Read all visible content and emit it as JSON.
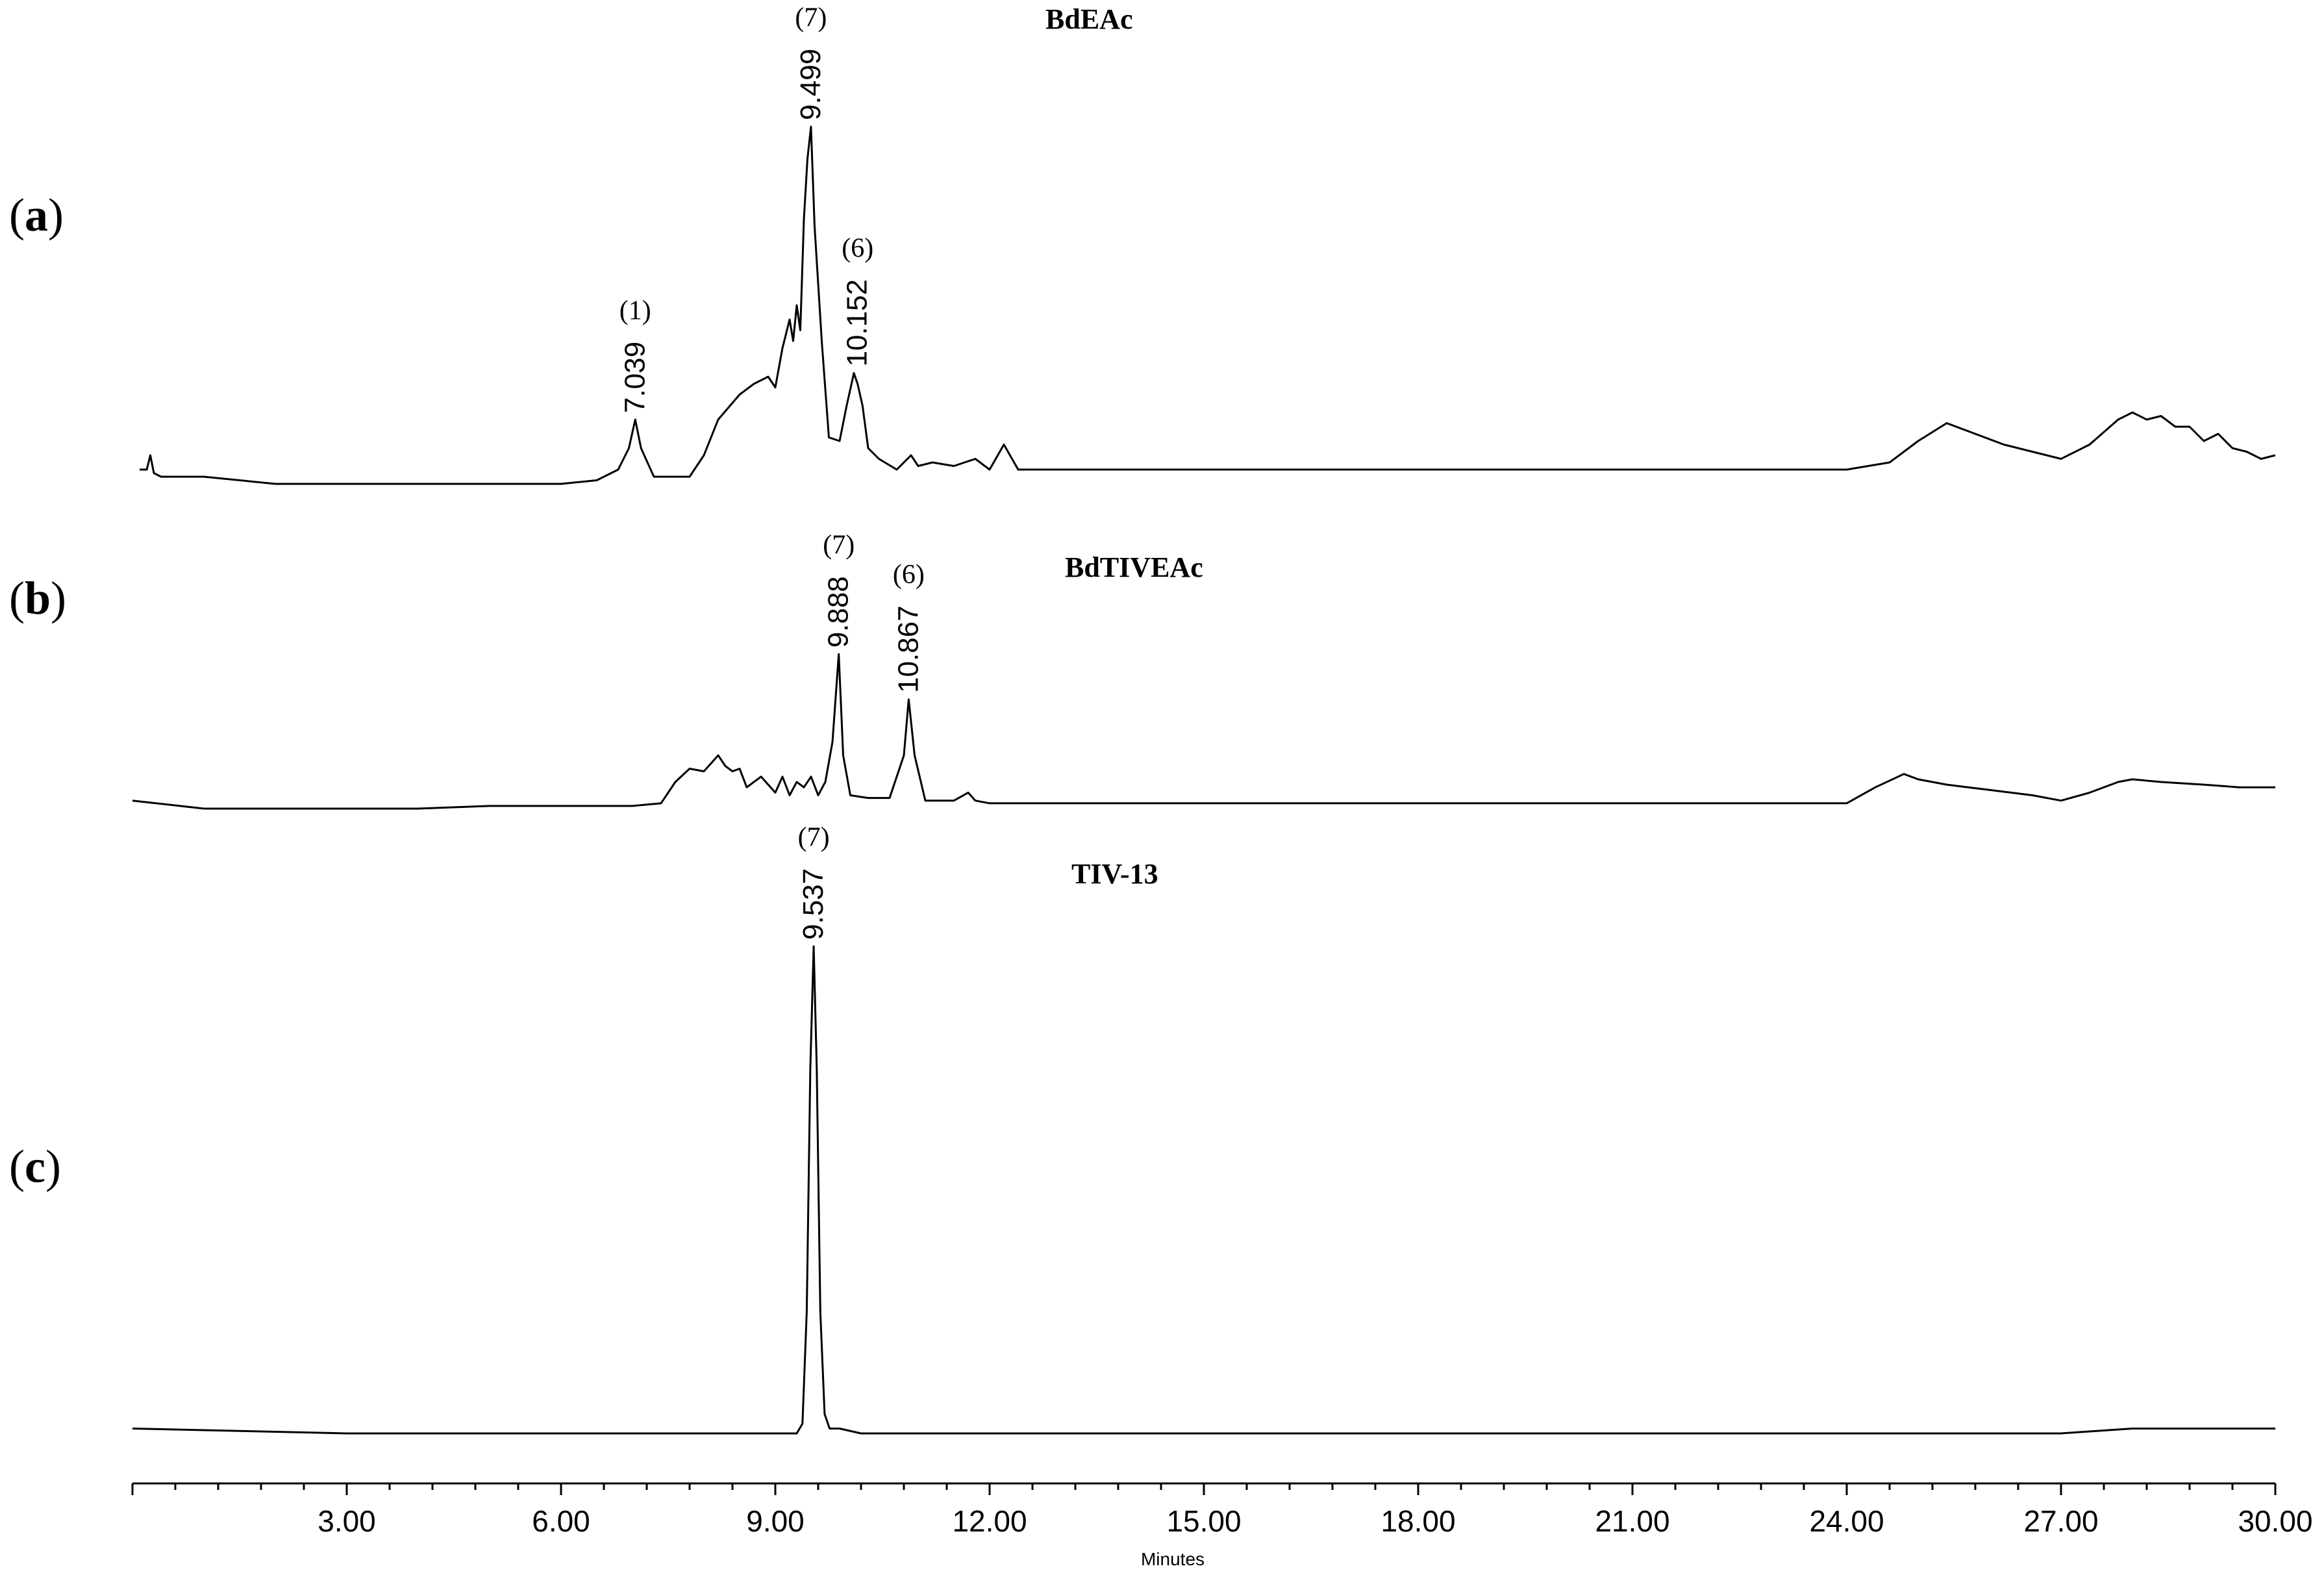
{
  "chart_data": {
    "type": "line",
    "x_unit_label": "Minutes",
    "xlim": [
      0.0,
      30.0
    ],
    "x_ticks": [
      "3.00",
      "6.00",
      "9.00",
      "12.00",
      "15.00",
      "18.00",
      "21.00",
      "24.00",
      "27.00",
      "30.00"
    ],
    "panels": [
      {
        "label": "a",
        "title": "BdEAc",
        "peaks": [
          {
            "id": "1",
            "rt_label": "7.039",
            "x": 7.039,
            "height": 0.18
          },
          {
            "id": "7",
            "rt_label": "9.499",
            "x": 9.499,
            "height": 1.0
          },
          {
            "id": "6",
            "rt_label": "10.152",
            "x": 10.152,
            "height": 0.31
          }
        ],
        "series": [
          {
            "x": [
              0.1,
              0.2,
              0.25,
              0.3,
              0.4,
              1.0,
              2.0,
              3.0,
              4.0,
              5.0,
              6.0,
              6.5,
              6.8,
              6.95,
              7.039,
              7.12,
              7.3,
              7.8,
              8.0,
              8.2,
              8.5,
              8.7,
              8.9,
              9.0,
              9.1,
              9.2,
              9.25,
              9.3,
              9.35,
              9.4,
              9.45,
              9.499,
              9.55,
              9.65,
              9.75,
              9.9,
              10.0,
              10.1,
              10.152,
              10.22,
              10.3,
              10.45,
              10.7,
              10.9,
              11.0,
              11.2,
              11.5,
              11.8,
              12.0,
              12.2,
              12.4,
              13.0,
              15.0,
              18.0,
              21.0,
              24.0,
              24.6,
              25.0,
              25.4,
              25.8,
              26.2,
              26.6,
              27.0,
              27.4,
              27.8,
              28.0,
              28.2,
              28.4,
              28.6,
              28.8,
              29.0,
              29.2,
              29.4,
              29.6,
              29.8,
              30.0
            ],
            "y": [
              0.04,
              0.04,
              0.08,
              0.03,
              0.02,
              0.02,
              0.0,
              0.0,
              0.0,
              0.0,
              0.0,
              0.01,
              0.04,
              0.1,
              0.18,
              0.1,
              0.02,
              0.02,
              0.08,
              0.18,
              0.25,
              0.28,
              0.3,
              0.27,
              0.38,
              0.46,
              0.4,
              0.5,
              0.43,
              0.74,
              0.91,
              1.0,
              0.72,
              0.4,
              0.13,
              0.12,
              0.22,
              0.31,
              0.28,
              0.22,
              0.1,
              0.07,
              0.04,
              0.08,
              0.05,
              0.06,
              0.05,
              0.07,
              0.04,
              0.11,
              0.04,
              0.04,
              0.04,
              0.04,
              0.04,
              0.04,
              0.06,
              0.12,
              0.17,
              0.14,
              0.11,
              0.09,
              0.07,
              0.11,
              0.18,
              0.2,
              0.18,
              0.19,
              0.16,
              0.16,
              0.12,
              0.14,
              0.1,
              0.09,
              0.07,
              0.08
            ]
          }
        ]
      },
      {
        "label": "b",
        "title": "BdTIVEAc",
        "peaks": [
          {
            "id": "7",
            "rt_label": "9.888",
            "x": 9.888,
            "height": 0.58
          },
          {
            "id": "6",
            "rt_label": "10.867",
            "x": 10.867,
            "height": 0.41
          }
        ],
        "series": [
          {
            "x": [
              0.0,
              1.0,
              2.0,
              3.0,
              4.0,
              5.0,
              6.0,
              7.0,
              7.4,
              7.6,
              7.8,
              8.0,
              8.2,
              8.3,
              8.4,
              8.5,
              8.6,
              8.8,
              9.0,
              9.1,
              9.2,
              9.3,
              9.4,
              9.5,
              9.6,
              9.7,
              9.8,
              9.888,
              9.95,
              10.05,
              10.3,
              10.6,
              10.8,
              10.867,
              10.95,
              11.1,
              11.5,
              11.7,
              11.8,
              12.0,
              15.0,
              18.0,
              21.0,
              24.0,
              24.4,
              24.8,
              25.0,
              25.4,
              26.0,
              26.6,
              27.0,
              27.4,
              27.8,
              28.0,
              28.4,
              29.0,
              29.5,
              30.0
            ],
            "y": [
              0.03,
              0.0,
              0.0,
              0.0,
              0.0,
              0.01,
              0.01,
              0.01,
              0.02,
              0.1,
              0.15,
              0.14,
              0.2,
              0.16,
              0.14,
              0.15,
              0.08,
              0.12,
              0.06,
              0.12,
              0.05,
              0.1,
              0.08,
              0.12,
              0.05,
              0.1,
              0.25,
              0.58,
              0.2,
              0.05,
              0.04,
              0.04,
              0.2,
              0.41,
              0.2,
              0.03,
              0.03,
              0.06,
              0.03,
              0.02,
              0.02,
              0.02,
              0.02,
              0.02,
              0.08,
              0.13,
              0.11,
              0.09,
              0.07,
              0.05,
              0.03,
              0.06,
              0.1,
              0.11,
              0.1,
              0.09,
              0.08,
              0.08
            ]
          }
        ]
      },
      {
        "label": "c",
        "title": "TIV-13",
        "peaks": [
          {
            "id": "7",
            "rt_label": "9.537",
            "x": 9.537,
            "height": 1.0
          }
        ],
        "series": [
          {
            "x": [
              0.0,
              3.0,
              6.0,
              8.0,
              9.0,
              9.3,
              9.38,
              9.44,
              9.49,
              9.537,
              9.58,
              9.63,
              9.69,
              9.76,
              9.9,
              10.2,
              12.0,
              15.0,
              18.0,
              21.0,
              24.0,
              27.0,
              28.0,
              29.0,
              30.0
            ],
            "y": [
              0.01,
              0.0,
              0.0,
              0.0,
              0.0,
              0.0,
              0.02,
              0.25,
              0.75,
              1.0,
              0.75,
              0.25,
              0.04,
              0.01,
              0.01,
              0.0,
              0.0,
              0.0,
              0.0,
              0.0,
              0.0,
              0.0,
              0.01,
              0.01,
              0.01
            ]
          }
        ]
      }
    ]
  }
}
